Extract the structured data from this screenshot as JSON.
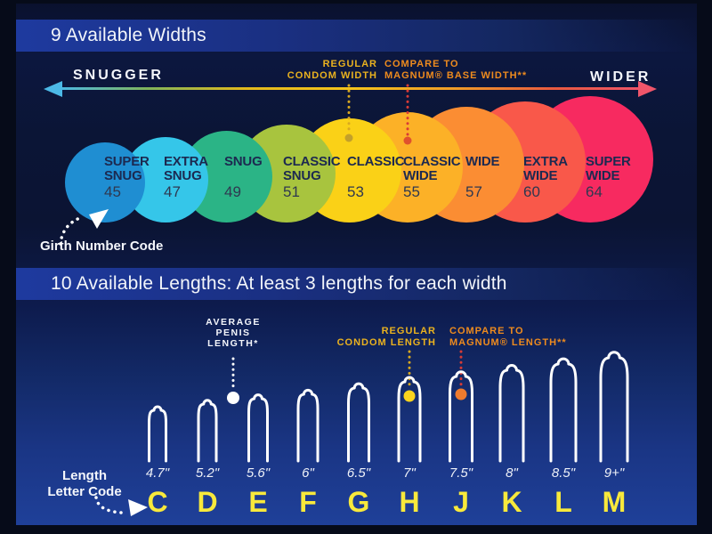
{
  "sections": {
    "widths": {
      "header": "9 Available Widths",
      "axis": {
        "left_label": "SNUGGER",
        "right_label": "WIDER"
      },
      "annotations": {
        "regular": {
          "lines": [
            "REGULAR",
            "CONDOM WIDTH"
          ]
        },
        "magnum": {
          "lines": [
            "COMPARE TO",
            "MAGNUM® BASE WIDTH**"
          ]
        }
      },
      "girth_code_label": "Girth Number Code",
      "circles": [
        {
          "lines": [
            "SUPER",
            "SNUG"
          ],
          "number": "45",
          "color": "#1f8ed2"
        },
        {
          "lines": [
            "EXTRA",
            "SNUG"
          ],
          "number": "47",
          "color": "#35c6e9"
        },
        {
          "lines": [
            "SNUG"
          ],
          "number": "49",
          "color": "#2bb486"
        },
        {
          "lines": [
            "CLASSIC",
            "SNUG"
          ],
          "number": "51",
          "color": "#a8c43e"
        },
        {
          "lines": [
            "CLASSIC"
          ],
          "number": "53",
          "color": "#fad117"
        },
        {
          "lines": [
            "CLASSIC",
            "WIDE"
          ],
          "number": "55",
          "color": "#fcb127"
        },
        {
          "lines": [
            "WIDE"
          ],
          "number": "57",
          "color": "#fb8d33"
        },
        {
          "lines": [
            "EXTRA",
            "WIDE"
          ],
          "number": "60",
          "color": "#f9584a"
        },
        {
          "lines": [
            "SUPER",
            "WIDE"
          ],
          "number": "64",
          "color": "#f72a60"
        }
      ]
    },
    "lengths": {
      "header": "10 Available Lengths: At least 3 lengths for each width",
      "annotations": {
        "average": {
          "lines": [
            "AVERAGE",
            "PENIS",
            "LENGTH*"
          ]
        },
        "regular": {
          "lines": [
            "REGULAR",
            "CONDOM LENGTH"
          ]
        },
        "magnum": {
          "lines": [
            "COMPARE TO",
            "MAGNUM® LENGTH**"
          ]
        }
      },
      "length_code_label": {
        "lines": [
          "Length",
          "Letter Code"
        ]
      },
      "condoms": [
        {
          "size": "4.7\"",
          "letter": "C"
        },
        {
          "size": "5.2\"",
          "letter": "D"
        },
        {
          "size": "5.6\"",
          "letter": "E"
        },
        {
          "size": "6\"",
          "letter": "F"
        },
        {
          "size": "6.5\"",
          "letter": "G"
        },
        {
          "size": "7\"",
          "letter": "H"
        },
        {
          "size": "7.5\"",
          "letter": "J"
        },
        {
          "size": "8\"",
          "letter": "K"
        },
        {
          "size": "8.5\"",
          "letter": "L"
        },
        {
          "size": "9+\"",
          "letter": "M"
        }
      ]
    }
  },
  "colors": {
    "background_navy": "#0b1433",
    "background_royal": "#1f4099",
    "header_bar": "#1e3a9f",
    "accent_yellow": "#eab21f",
    "accent_orange": "#ee8b1e",
    "letter_yellow": "#f8e93b",
    "arrow_left_cyan": "#4cb9e7",
    "arrow_right_red": "#f0556a"
  },
  "chart_data": [
    {
      "type": "bar",
      "title": "9 Available Widths",
      "categories": [
        "SUPER SNUG",
        "EXTRA SNUG",
        "SNUG",
        "CLASSIC SNUG",
        "CLASSIC",
        "CLASSIC WIDE",
        "WIDE",
        "EXTRA WIDE",
        "SUPER WIDE"
      ],
      "values": [
        45,
        47,
        49,
        51,
        53,
        55,
        57,
        60,
        64
      ],
      "xlabel": "snugger to wider",
      "ylabel": "girth number code"
    },
    {
      "type": "bar",
      "title": "10 Available Lengths: At least 3 lengths for each width",
      "categories": [
        "C",
        "D",
        "E",
        "F",
        "G",
        "H",
        "J",
        "K",
        "L",
        "M"
      ],
      "values": [
        4.7,
        5.2,
        5.6,
        6,
        6.5,
        7,
        7.5,
        8,
        8.5,
        9
      ],
      "xlabel": "length letter code",
      "ylabel": "inches"
    }
  ]
}
